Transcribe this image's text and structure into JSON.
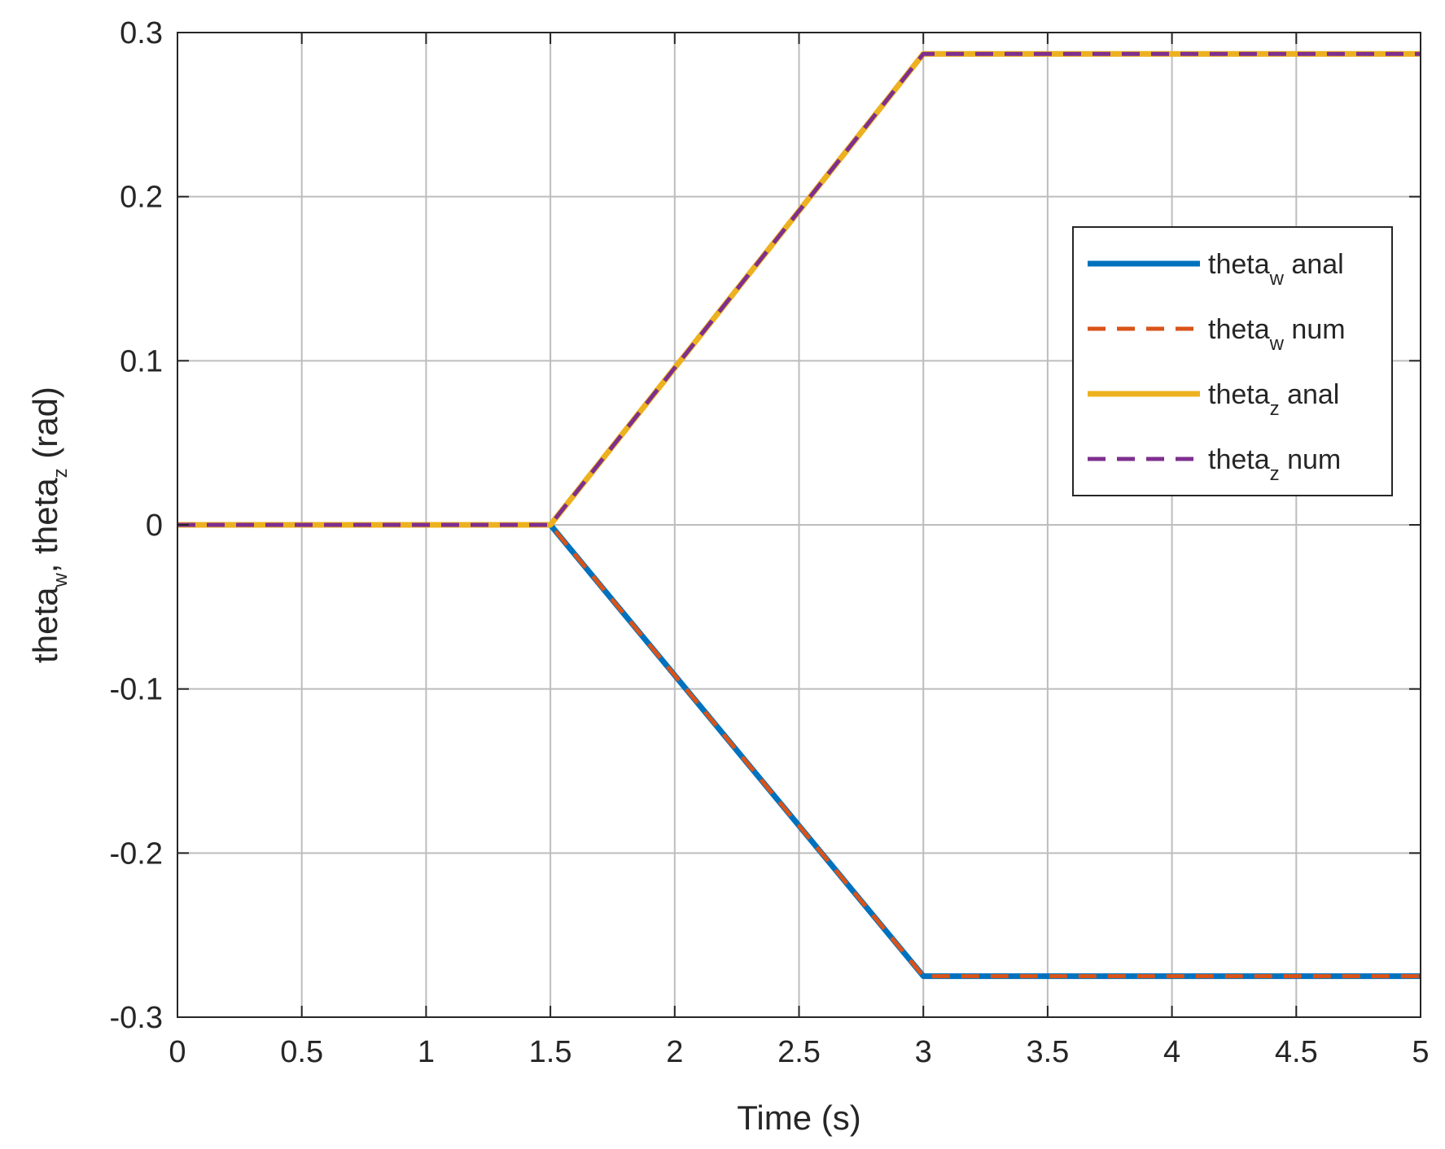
{
  "chart_data": {
    "type": "line",
    "xlabel": "Time (s)",
    "ylabel": {
      "parts": [
        [
          "theta",
          ""
        ],
        [
          "w",
          "sub"
        ],
        [
          ", theta",
          ""
        ],
        [
          "z",
          "sub"
        ],
        [
          " (rad)",
          ""
        ]
      ]
    },
    "xlim": [
      0,
      5
    ],
    "ylim": [
      -0.3,
      0.3
    ],
    "xticks": [
      0,
      0.5,
      1,
      1.5,
      2,
      2.5,
      3,
      3.5,
      4,
      4.5,
      5
    ],
    "xtick_labels": [
      "0",
      "0.5",
      "1",
      "1.5",
      "2",
      "2.5",
      "3",
      "3.5",
      "4",
      "4.5",
      "5"
    ],
    "yticks": [
      -0.3,
      -0.2,
      -0.1,
      0,
      0.1,
      0.2,
      0.3
    ],
    "ytick_labels": [
      "-0.3",
      "-0.2",
      "-0.1",
      "0",
      "0.1",
      "0.2",
      "0.3"
    ],
    "grid": true,
    "legend_position": "right",
    "series": [
      {
        "name": "theta_w anal",
        "label_base": "theta",
        "label_sub": "w",
        "label_suffix": " anal",
        "color": "#0072BD",
        "dash": "solid",
        "x": [
          0,
          1.5,
          3,
          5
        ],
        "y": [
          0,
          0,
          -0.275,
          -0.275
        ]
      },
      {
        "name": "theta_w num",
        "label_base": "theta",
        "label_sub": "w",
        "label_suffix": " num",
        "color": "#D95319",
        "dash": "dashed",
        "x": [
          0,
          1.5,
          3,
          5
        ],
        "y": [
          0,
          0,
          -0.275,
          -0.275
        ]
      },
      {
        "name": "theta_z anal",
        "label_base": "theta",
        "label_sub": "z",
        "label_suffix": " anal",
        "color": "#EDB120",
        "dash": "solid",
        "x": [
          0,
          1.5,
          3,
          5
        ],
        "y": [
          0,
          0,
          0.287,
          0.287
        ]
      },
      {
        "name": "theta_z num",
        "label_base": "theta",
        "label_sub": "z",
        "label_suffix": " num",
        "color": "#7E2F8E",
        "dash": "dashed",
        "x": [
          0,
          1.5,
          3,
          5
        ],
        "y": [
          0,
          0,
          0.287,
          0.287
        ]
      }
    ]
  }
}
